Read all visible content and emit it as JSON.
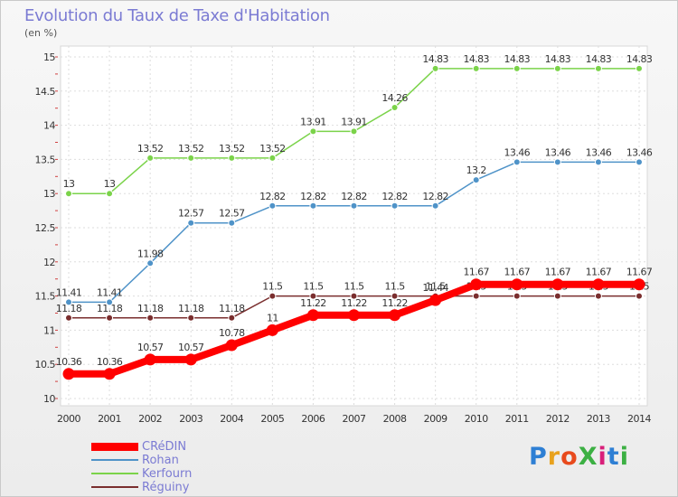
{
  "header": {
    "title": "Evolution du Taux de Taxe d'Habitation",
    "subtitle": "(en %)"
  },
  "brand": {
    "text": "ProXiti",
    "colors": [
      "#2e7fd4",
      "#e8a21d",
      "#e84a1d",
      "#3cb043",
      "#d81f7a",
      "#2e7fd4",
      "#3cb043"
    ]
  },
  "chart_data": {
    "type": "line",
    "categories": [
      "2000",
      "2001",
      "2002",
      "2003",
      "2004",
      "2005",
      "2006",
      "2007",
      "2008",
      "2009",
      "2010",
      "2011",
      "2012",
      "2013",
      "2014"
    ],
    "ylim": [
      10,
      15
    ],
    "yticks": [
      "10",
      "10.5",
      "11",
      "11.5",
      "12",
      "12.5",
      "13",
      "13.5",
      "14",
      "14.5",
      "15"
    ],
    "grid": true,
    "legend": "bottom-left",
    "series": [
      {
        "name": "CRéDIN",
        "color": "#ff0000",
        "values": [
          10.36,
          10.36,
          10.57,
          10.57,
          10.78,
          11,
          11.22,
          11.22,
          11.22,
          11.44,
          11.67,
          11.67,
          11.67,
          11.67,
          11.67
        ],
        "labels": [
          "10.36",
          "10.36",
          "10.57",
          "10.57",
          "10.78",
          "11",
          "11.22",
          "11.22",
          "11.22",
          "11.44",
          "11.67",
          "11.67",
          "11.67",
          "11.67",
          "11.67"
        ]
      },
      {
        "name": "Rohan",
        "color": "#4f93c8",
        "values": [
          11.41,
          11.41,
          11.98,
          12.57,
          12.57,
          12.82,
          12.82,
          12.82,
          12.82,
          12.82,
          13.2,
          13.46,
          13.46,
          13.46,
          13.46
        ],
        "labels": [
          "11.41",
          "11.41",
          "11.98",
          "12.57",
          "12.57",
          "12.82",
          "12.82",
          "12.82",
          "12.82",
          "12.82",
          "13.2",
          "13.46",
          "13.46",
          "13.46",
          "13.46"
        ]
      },
      {
        "name": "Kerfourn",
        "color": "#7bd34a",
        "values": [
          13,
          13,
          13.52,
          13.52,
          13.52,
          13.52,
          13.91,
          13.91,
          14.26,
          14.83,
          14.83,
          14.83,
          14.83,
          14.83,
          14.83
        ],
        "labels": [
          "13",
          "13",
          "13.52",
          "13.52",
          "13.52",
          "13.52",
          "13.91",
          "13.91",
          "14.26",
          "14.83",
          "14.83",
          "14.83",
          "14.83",
          "14.83",
          "14.83"
        ]
      },
      {
        "name": "Réguiny",
        "color": "#7a2e2e",
        "values": [
          11.18,
          11.18,
          11.18,
          11.18,
          11.18,
          11.5,
          11.5,
          11.5,
          11.5,
          11.5,
          11.5,
          11.5,
          11.5,
          11.5,
          11.5
        ],
        "labels": [
          "11.18",
          "11.18",
          "11.18",
          "11.18",
          "11.18",
          "11.5",
          "11.5",
          "11.5",
          "11.5",
          "11.5",
          "11.5",
          "11.5",
          "11.5",
          "11.5",
          "11.5"
        ]
      }
    ]
  }
}
